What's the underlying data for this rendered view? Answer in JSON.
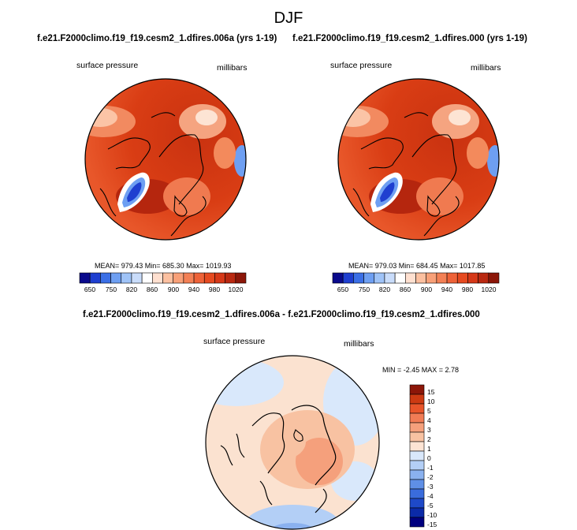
{
  "figure": {
    "title": "DJF"
  },
  "panels": [
    {
      "title": "f.e21.F2000climo.f19_f19.cesm2_1.dfires.006a (yrs 1-19)",
      "variable": "surface pressure",
      "units": "millibars",
      "stats": "MEAN= 979.43  Min= 685.30  Max= 1019.93",
      "colorbar_ticks": [
        "650",
        "750",
        "820",
        "860",
        "900",
        "940",
        "980",
        "1020"
      ]
    },
    {
      "title": "f.e21.F2000climo.f19_f19.cesm2_1.dfires.000 (yrs 1-19)",
      "variable": "surface pressure",
      "units": "millibars",
      "stats": "MEAN= 979.03  Min= 684.45  Max= 1017.85",
      "colorbar_ticks": [
        "650",
        "750",
        "820",
        "860",
        "900",
        "940",
        "980",
        "1020"
      ]
    },
    {
      "title": "f.e21.F2000climo.f19_f19.cesm2_1.dfires.006a - f.e21.F2000climo.f19_f19.cesm2_1.dfires.000",
      "variable": "surface pressure",
      "units": "millibars",
      "stats": "MIN = -2.45  MAX =   2.78",
      "colorbar_ticks": [
        "15",
        "10",
        "5",
        "4",
        "3",
        "2",
        "1",
        "0",
        "-1",
        "-2",
        "-3",
        "-4",
        "-5",
        "-10",
        "-15"
      ]
    }
  ],
  "colors": {
    "abs_scale": [
      "#0a0a8c",
      "#1f3fd0",
      "#3b6fe6",
      "#6e9ff2",
      "#9fc3f7",
      "#c9dcfa",
      "#ffffff",
      "#ffe0d0",
      "#fcc0a0",
      "#f8a078",
      "#f38055",
      "#ee6238",
      "#e64a20",
      "#d63818",
      "#b92810",
      "#8c1608"
    ],
    "diff_scale": [
      "#8c1608",
      "#cc3a12",
      "#e8552a",
      "#f17c55",
      "#f5a07c",
      "#f8c2a2",
      "#fde4d4",
      "#d9e8fb",
      "#b3cff6",
      "#8ab1ef",
      "#5f8fe6",
      "#3a6cdc",
      "#1e49c8",
      "#0b2aa8",
      "#00007f"
    ],
    "map_background": "#d83e14",
    "diff_background": "#fbe2d0"
  }
}
